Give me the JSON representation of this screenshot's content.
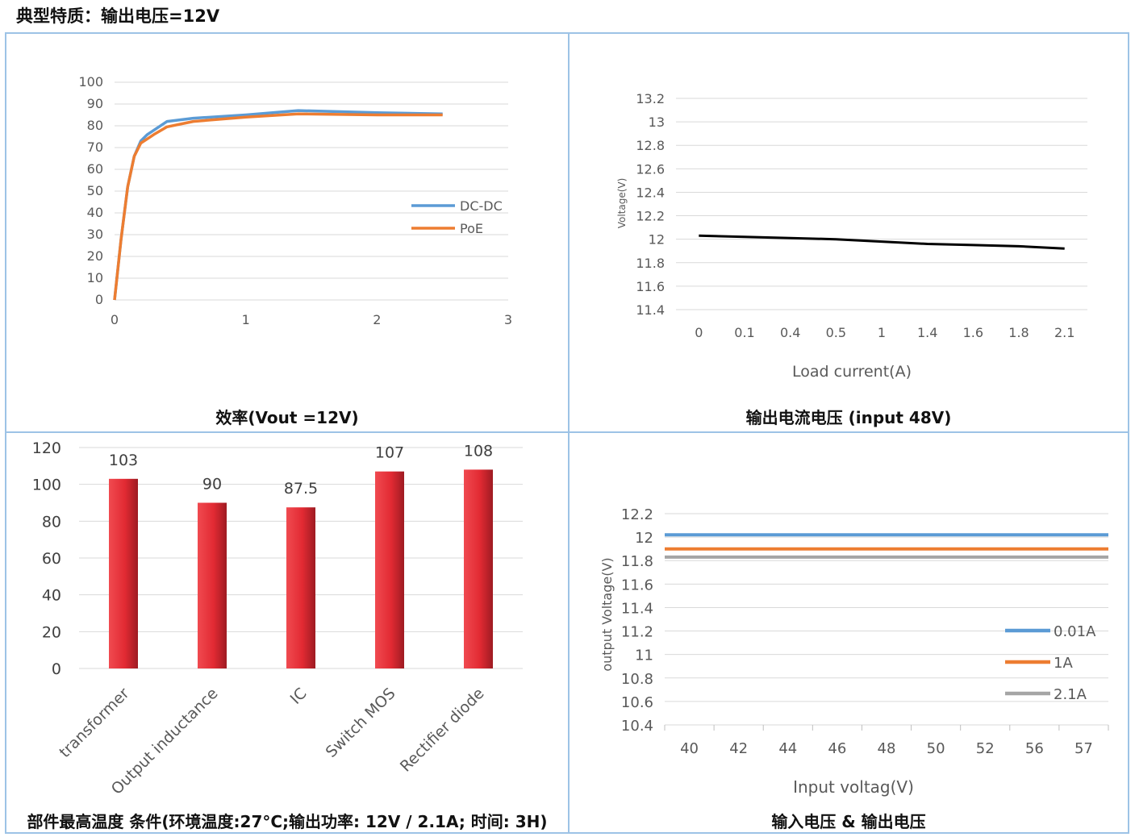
{
  "page": {
    "title": "典型特质：输出电压=12V"
  },
  "captions": {
    "efficiency": "效率(Vout =12V)",
    "load": "输出电流电压 (input 48V)",
    "temperature": "部件最高温度 条件(环境温度:27°C;输出功率: 12V / 2.1A; 时间: 3H)",
    "input_output": "输入电压 & 输出电压"
  },
  "chart_data": [
    {
      "id": "efficiency",
      "type": "line",
      "x_ticks": [
        "0",
        "1",
        "2",
        "3"
      ],
      "y_ticks": [
        "0",
        "10",
        "20",
        "30",
        "40",
        "50",
        "60",
        "70",
        "80",
        "90",
        "100"
      ],
      "xlim": [
        0,
        3
      ],
      "ylim": [
        0,
        100
      ],
      "legend": "right",
      "series": [
        {
          "name": "DC-DC",
          "color": "#5b9bd5",
          "x": [
            0,
            0.05,
            0.1,
            0.15,
            0.2,
            0.25,
            0.3,
            0.4,
            0.6,
            1.0,
            1.4,
            2.0,
            2.5
          ],
          "y": [
            0,
            28,
            52,
            66,
            73,
            76,
            78,
            82,
            83.5,
            85,
            87,
            86,
            85.5
          ]
        },
        {
          "name": "PoE",
          "color": "#ed7d31",
          "x": [
            0,
            0.05,
            0.1,
            0.15,
            0.2,
            0.25,
            0.3,
            0.4,
            0.6,
            1.0,
            1.4,
            2.0,
            2.5
          ],
          "y": [
            0,
            28,
            52,
            66,
            72,
            74,
            76,
            79.5,
            82,
            84,
            85.5,
            85,
            85
          ]
        }
      ]
    },
    {
      "id": "load",
      "type": "line",
      "xlabel": "Load current(A)",
      "ylabel": "Voltage(V)",
      "categories": [
        "0",
        "0.1",
        "0.4",
        "0.5",
        "1",
        "1.4",
        "1.6",
        "1.8",
        "2.1"
      ],
      "y_ticks": [
        "11.4",
        "11.6",
        "11.8",
        "12",
        "12.2",
        "12.4",
        "12.6",
        "12.8",
        "13",
        "13.2"
      ],
      "ylim": [
        11.4,
        13.2
      ],
      "series": [
        {
          "name": "",
          "color": "#000000",
          "values": [
            12.03,
            12.02,
            12.01,
            12.0,
            11.98,
            11.96,
            11.95,
            11.94,
            11.92
          ]
        }
      ]
    },
    {
      "id": "temperature",
      "type": "bar",
      "categories": [
        "transformer",
        "Output inductance",
        "IC",
        "Switch MOS",
        "Rectifier diode"
      ],
      "values": [
        103,
        90,
        87.5,
        107,
        108
      ],
      "value_labels": [
        "103",
        "90",
        "87.5",
        "107",
        "108"
      ],
      "y_ticks": [
        "0",
        "20",
        "40",
        "60",
        "80",
        "100",
        "120"
      ],
      "ylim": [
        0,
        120
      ],
      "bar_color": "#e8343c"
    },
    {
      "id": "input_output",
      "type": "line",
      "xlabel": "Input voltag(V)",
      "ylabel": "output Voltage(V)",
      "categories": [
        "40",
        "42",
        "44",
        "46",
        "48",
        "50",
        "52",
        "56",
        "57"
      ],
      "y_ticks": [
        "10.4",
        "10.6",
        "10.8",
        "11",
        "11.2",
        "11.4",
        "11.6",
        "11.8",
        "12",
        "12.2"
      ],
      "ylim": [
        10.4,
        12.2
      ],
      "legend": "right",
      "series": [
        {
          "name": "0.01A",
          "color": "#5b9bd5",
          "values": [
            12.02,
            12.02,
            12.02,
            12.02,
            12.02,
            12.02,
            12.02,
            12.02,
            12.02
          ]
        },
        {
          "name": "1A",
          "color": "#ed7d31",
          "values": [
            11.9,
            11.9,
            11.9,
            11.9,
            11.9,
            11.9,
            11.9,
            11.9,
            11.9
          ]
        },
        {
          "name": "2.1A",
          "color": "#a5a5a5",
          "values": [
            11.83,
            11.83,
            11.83,
            11.83,
            11.83,
            11.83,
            11.83,
            11.83,
            11.83
          ]
        }
      ]
    }
  ]
}
